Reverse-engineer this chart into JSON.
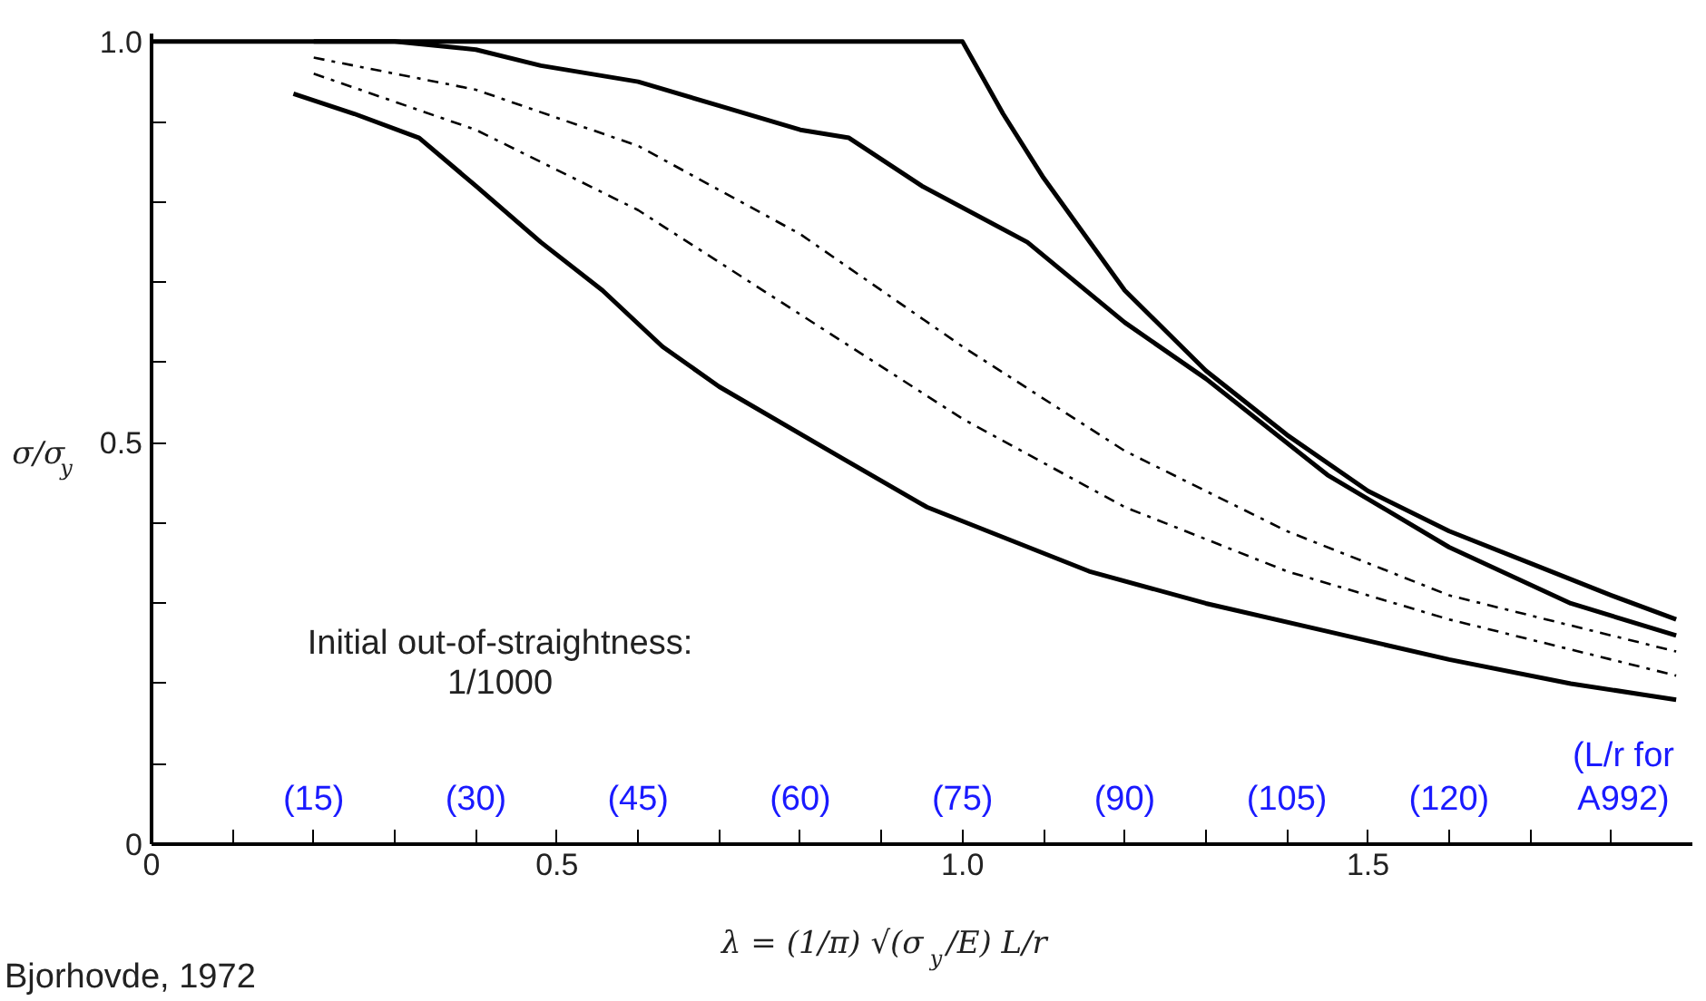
{
  "chart_data": {
    "type": "line",
    "xlabel": "λ = (1/π) √(σ$_{y}$/E) L/r",
    "ylabel": "σ/σ$_{y}$",
    "xlim": [
      0,
      1.9
    ],
    "ylim": [
      0,
      1.01
    ],
    "xticks": [
      0,
      {
        "value": 0.1,
        "label": null
      },
      {
        "value": 0.2,
        "label": null
      },
      {
        "value": 0.3,
        "label": null
      },
      {
        "value": 0.4,
        "label": null
      },
      0.5,
      {
        "value": 0.6,
        "label": null
      },
      {
        "value": 0.7,
        "label": null
      },
      {
        "value": 0.8,
        "label": null
      },
      {
        "value": 0.9,
        "label": null
      },
      {
        "value": 1,
        "label": "1.0"
      },
      {
        "value": 1.1,
        "label": null
      },
      {
        "value": 1.2,
        "label": null
      },
      {
        "value": 1.3,
        "label": null
      },
      {
        "value": 1.4,
        "label": null
      },
      1.5,
      {
        "value": 1.6,
        "label": null
      },
      {
        "value": 1.7,
        "label": null
      },
      {
        "value": 1.8,
        "label": null
      }
    ],
    "yticks": [
      0,
      {
        "value": 0.1,
        "label": null
      },
      {
        "value": 0.2,
        "label": null
      },
      {
        "value": 0.3,
        "label": null
      },
      {
        "value": 0.4,
        "label": null
      },
      0.5,
      {
        "value": 0.6,
        "label": null
      },
      {
        "value": 0.7,
        "label": null
      },
      {
        "value": 0.8,
        "label": null
      },
      {
        "value": 0.9,
        "label": null
      },
      {
        "value": 1,
        "label": "1.0"
      }
    ],
    "grid": false,
    "marker": "none",
    "x2label": "(L/r for\nA992)",
    "x2lim": [
      0,
      142.5
    ],
    "x2ticks": [
      {
        "value": 15,
        "label": "(15)"
      },
      {
        "value": 30,
        "label": "(30)"
      },
      {
        "value": 45,
        "label": "(45)"
      },
      {
        "value": 60,
        "label": "(60)"
      },
      {
        "value": 75,
        "label": "(75)"
      },
      {
        "value": 90,
        "label": "(90)"
      },
      {
        "value": 105,
        "label": "(105)"
      },
      {
        "value": 120,
        "label": "(120)"
      }
    ],
    "series": [
      {
        "color": "#000000",
        "line_style": "solid",
        "x": [
          0,
          1.0,
          1.05,
          1.1,
          1.2,
          1.3,
          1.4,
          1.5,
          1.6,
          1.7,
          1.8,
          1.88
        ],
        "values": [
          1,
          1,
          0.91,
          0.83,
          0.69,
          0.59,
          0.51,
          0.44,
          0.39,
          0.35,
          0.31,
          0.28
        ]
      },
      {
        "color": "#000000",
        "line_style": "solid",
        "x": [
          0.2,
          0.3,
          0.4,
          0.48,
          0.6,
          0.7,
          0.8,
          0.86,
          0.95,
          1.08,
          1.2,
          1.3,
          1.45,
          1.6,
          1.75,
          1.88
        ],
        "values": [
          1.0,
          1.0,
          0.99,
          0.97,
          0.95,
          0.92,
          0.89,
          0.88,
          0.82,
          0.75,
          0.65,
          0.58,
          0.46,
          0.37,
          0.3,
          0.26
        ]
      },
      {
        "color": "#000000",
        "line_style": "dashed",
        "x": [
          0.2,
          0.4,
          0.6,
          0.8,
          1.0,
          1.2,
          1.4,
          1.6,
          1.88
        ],
        "values": [
          0.98,
          0.94,
          0.87,
          0.76,
          0.62,
          0.49,
          0.39,
          0.31,
          0.24
        ]
      },
      {
        "color": "#000000",
        "line_style": "dashed",
        "x": [
          0.2,
          0.4,
          0.6,
          0.8,
          1.0,
          1.2,
          1.4,
          1.6,
          1.88
        ],
        "values": [
          0.96,
          0.89,
          0.79,
          0.66,
          0.53,
          0.42,
          0.34,
          0.28,
          0.21
        ]
      },
      {
        "color": "#000000",
        "line_style": "solid",
        "x": [
          0.175,
          0.25,
          0.33,
          0.4,
          0.48,
          0.556,
          0.63,
          0.7,
          0.853,
          0.956,
          1.156,
          1.3,
          1.45,
          1.6,
          1.75,
          1.88
        ],
        "values": [
          0.935,
          0.91,
          0.88,
          0.82,
          0.75,
          0.69,
          0.62,
          0.57,
          0.48,
          0.42,
          0.34,
          0.3,
          0.265,
          0.23,
          0.2,
          0.18
        ]
      }
    ],
    "annotations": [
      "Initial out-of-straightness:\n1/1000",
      "Bjorhovde, 1972"
    ]
  }
}
